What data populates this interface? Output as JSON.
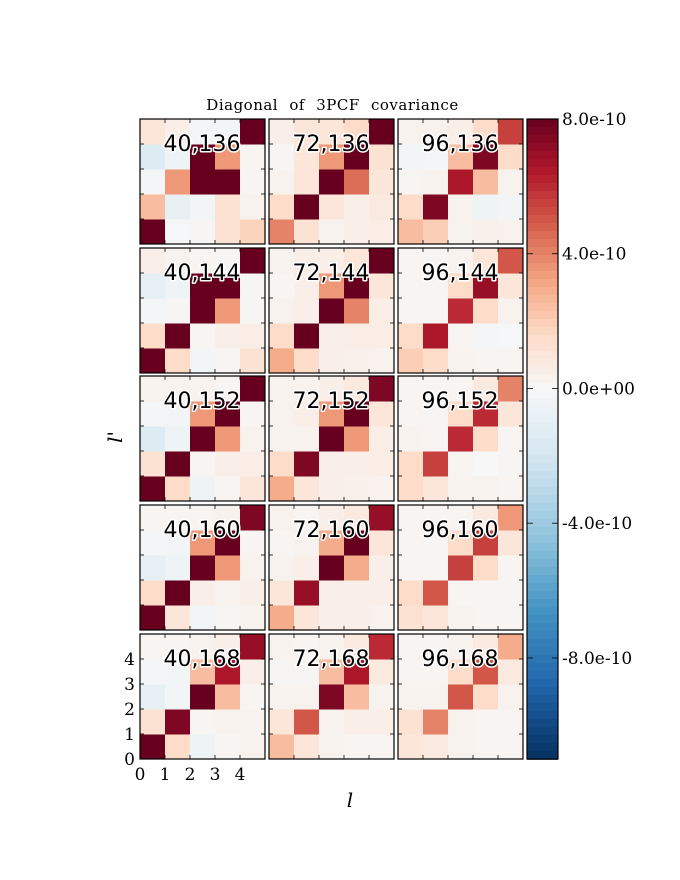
{
  "chart_data": {
    "type": "heatmap",
    "title": "Diagonal of 3PCF covariance",
    "xlabel": "l",
    "ylabel": "l'",
    "x_ticks": [
      "0",
      "1",
      "2",
      "3",
      "4"
    ],
    "y_ticks": [
      "0",
      "1",
      "2",
      "3",
      "4"
    ],
    "colormap": "RdBu_r",
    "vmin": -1.1e-09,
    "vmax": 8e-10,
    "colorbar_ticks": [
      {
        "value": 8e-10,
        "label": "8.0e-10"
      },
      {
        "value": 4e-10,
        "label": "4.0e-10"
      },
      {
        "value": 0.0,
        "label": "0.0e+00"
      },
      {
        "value": -4e-10,
        "label": "-4.0e-10"
      },
      {
        "value": -8e-10,
        "label": "-8.0e-10"
      }
    ],
    "panels": [
      {
        "label": "40,136",
        "matrix": [
          [
            8.5,
            -0.1,
            0.1,
            1.2,
            1.8
          ],
          [
            2.5,
            -0.8,
            -0.3,
            1.2,
            0.3
          ],
          [
            -0.2,
            3.5,
            9.0,
            9.0,
            0.2
          ],
          [
            -1.5,
            -0.5,
            9.0,
            3.5,
            0.2
          ],
          [
            1.0,
            0.5,
            -0.2,
            -0.3,
            10.0
          ]
        ]
      },
      {
        "label": "72,136",
        "matrix": [
          [
            4.0,
            1.2,
            0.3,
            0.5,
            0.6
          ],
          [
            1.5,
            8.5,
            1.0,
            0.5,
            0.8
          ],
          [
            0.3,
            1.0,
            8.5,
            4.5,
            1.0
          ],
          [
            0.1,
            1.0,
            3.5,
            8.5,
            1.2
          ],
          [
            0.5,
            1.0,
            1.0,
            1.5,
            8.5
          ]
        ]
      },
      {
        "label": "96,136",
        "matrix": [
          [
            2.5,
            2.0,
            0.3,
            0.4,
            0.3
          ],
          [
            1.5,
            7.5,
            0.3,
            -0.5,
            -0.3
          ],
          [
            0.2,
            0.3,
            6.5,
            2.5,
            0.3
          ],
          [
            -0.3,
            -0.2,
            2.5,
            7.5,
            1.5
          ],
          [
            0.3,
            0.3,
            0.5,
            1.5,
            5.5
          ]
        ]
      },
      {
        "label": "40,144",
        "matrix": [
          [
            8.5,
            1.5,
            -0.3,
            0.1,
            1.2
          ],
          [
            1.5,
            8.5,
            0.2,
            0.5,
            0.6
          ],
          [
            -0.2,
            0.1,
            8.5,
            3.5,
            0.1
          ],
          [
            -1.0,
            -0.5,
            9.0,
            8.5,
            0.1
          ],
          [
            0.5,
            0.3,
            0.2,
            0.1,
            10.0
          ]
        ]
      },
      {
        "label": "72,144",
        "matrix": [
          [
            3.0,
            1.5,
            0.5,
            0.4,
            0.3
          ],
          [
            1.5,
            8.5,
            0.5,
            0.6,
            0.6
          ],
          [
            0.3,
            0.5,
            8.5,
            4.0,
            0.6
          ],
          [
            0.2,
            0.5,
            3.5,
            8.5,
            1.0
          ],
          [
            0.3,
            0.5,
            0.5,
            1.0,
            8.5
          ]
        ]
      },
      {
        "label": "96,144",
        "matrix": [
          [
            2.0,
            1.5,
            0.3,
            0.2,
            0.2
          ],
          [
            1.5,
            6.5,
            0.2,
            -0.2,
            -0.1
          ],
          [
            0.2,
            0.2,
            6.0,
            1.5,
            0.3
          ],
          [
            0.1,
            0.1,
            1.5,
            7.0,
            1.0
          ],
          [
            0.2,
            0.1,
            0.3,
            1.0,
            5.0
          ]
        ]
      },
      {
        "label": "40,152",
        "matrix": [
          [
            9.0,
            1.5,
            -0.5,
            0.2,
            1.0
          ],
          [
            1.2,
            9.0,
            0.2,
            0.5,
            0.6
          ],
          [
            -1.5,
            -0.5,
            9.0,
            3.5,
            0.3
          ],
          [
            -0.2,
            -0.3,
            3.5,
            8.5,
            0.2
          ],
          [
            0.3,
            0.3,
            0.3,
            0.2,
            9.5
          ]
        ]
      },
      {
        "label": "72,152",
        "matrix": [
          [
            3.0,
            1.0,
            0.5,
            0.4,
            0.3
          ],
          [
            1.5,
            7.5,
            0.5,
            0.5,
            0.6
          ],
          [
            0.3,
            0.3,
            8.5,
            3.5,
            0.6
          ],
          [
            0.3,
            0.5,
            3.5,
            8.5,
            1.0
          ],
          [
            0.3,
            0.3,
            0.5,
            0.8,
            7.5
          ]
        ]
      },
      {
        "label": "96,152",
        "matrix": [
          [
            1.5,
            1.0,
            0.3,
            0.3,
            0.2
          ],
          [
            1.5,
            5.5,
            0.2,
            0.0,
            0.1
          ],
          [
            0.3,
            0.2,
            6.0,
            1.5,
            0.2
          ],
          [
            0.2,
            0.1,
            1.5,
            6.0,
            1.0
          ],
          [
            0.2,
            0.2,
            0.2,
            0.8,
            4.0
          ]
        ]
      },
      {
        "label": "40,160",
        "matrix": [
          [
            8.5,
            1.0,
            -0.3,
            0.1,
            0.3
          ],
          [
            1.5,
            8.5,
            0.5,
            0.3,
            0.5
          ],
          [
            -1.0,
            -0.5,
            8.5,
            3.5,
            0.3
          ],
          [
            -0.2,
            -0.3,
            3.5,
            8.0,
            0.2
          ],
          [
            0.2,
            0.2,
            0.2,
            0.3,
            7.5
          ]
        ]
      },
      {
        "label": "72,160",
        "matrix": [
          [
            3.0,
            1.0,
            0.5,
            0.5,
            0.3
          ],
          [
            1.0,
            7.0,
            0.5,
            0.5,
            0.5
          ],
          [
            0.3,
            0.5,
            8.5,
            3.0,
            0.5
          ],
          [
            0.2,
            0.3,
            3.0,
            8.0,
            1.0
          ],
          [
            0.3,
            0.2,
            0.5,
            0.8,
            7.0
          ]
        ]
      },
      {
        "label": "96,160",
        "matrix": [
          [
            1.2,
            1.0,
            0.3,
            0.2,
            0.2
          ],
          [
            1.5,
            5.0,
            0.2,
            0.1,
            0.1
          ],
          [
            0.2,
            0.2,
            5.5,
            1.5,
            0.2
          ],
          [
            0.2,
            0.1,
            1.5,
            5.5,
            1.0
          ],
          [
            0.1,
            0.1,
            0.2,
            0.8,
            3.5
          ]
        ]
      },
      {
        "label": "40,168",
        "matrix": [
          [
            8.5,
            1.5,
            -0.5,
            0.2,
            0.3
          ],
          [
            1.2,
            7.5,
            0.2,
            0.3,
            0.3
          ],
          [
            -1.0,
            -0.3,
            8.5,
            2.5,
            0.2
          ],
          [
            -0.2,
            -0.3,
            2.5,
            6.5,
            0.5
          ],
          [
            0.2,
            0.2,
            0.3,
            0.5,
            7.0
          ]
        ]
      },
      {
        "label": "72,168",
        "matrix": [
          [
            2.5,
            1.0,
            0.3,
            0.2,
            0.2
          ],
          [
            1.0,
            5.0,
            0.3,
            0.5,
            0.5
          ],
          [
            0.3,
            0.3,
            7.5,
            2.5,
            0.3
          ],
          [
            0.1,
            0.1,
            2.5,
            6.5,
            0.8
          ],
          [
            0.3,
            0.2,
            0.3,
            0.8,
            6.0
          ]
        ]
      },
      {
        "label": "96,168",
        "matrix": [
          [
            1.0,
            0.8,
            0.3,
            0.2,
            0.2
          ],
          [
            1.2,
            4.0,
            0.3,
            0.2,
            0.2
          ],
          [
            0.3,
            0.3,
            5.0,
            1.5,
            0.3
          ],
          [
            0.2,
            0.2,
            1.5,
            5.0,
            0.8
          ],
          [
            0.1,
            0.1,
            0.3,
            0.8,
            3.0
          ]
        ]
      }
    ],
    "matrix_scale": 1e-10,
    "matrix_row_order": "bottom-to-top"
  }
}
